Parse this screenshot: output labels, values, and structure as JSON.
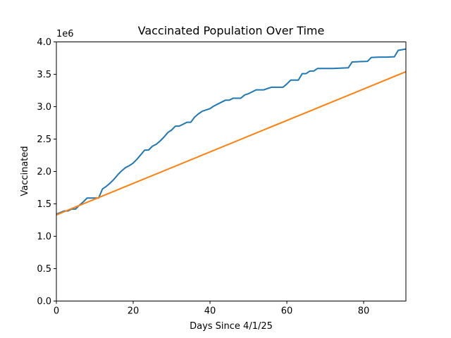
{
  "chart_data": {
    "type": "line",
    "title": "Vaccinated Population Over Time",
    "xlabel": "Days Since 4/1/25",
    "ylabel": "Vaccinated",
    "y_multiplier_label": "1e6",
    "xlim": [
      0,
      91
    ],
    "ylim": [
      0,
      4000000
    ],
    "x_ticks": [
      0,
      20,
      40,
      60,
      80
    ],
    "x_tick_labels": [
      "0",
      "20",
      "40",
      "60",
      "80"
    ],
    "y_ticks": [
      0,
      500000,
      1000000,
      1500000,
      2000000,
      2500000,
      3000000,
      3500000,
      4000000
    ],
    "y_tick_labels": [
      "0.0",
      "0.5",
      "1.0",
      "1.5",
      "2.0",
      "2.5",
      "3.0",
      "3.5",
      "4.0"
    ],
    "grid": false,
    "legend": "none",
    "series": [
      {
        "color": "#1f77b4",
        "x": [
          0,
          2,
          3,
          4,
          5,
          6,
          7,
          8,
          9,
          10,
          11,
          12,
          13,
          14,
          15,
          16,
          17,
          18,
          19,
          20,
          21,
          22,
          23,
          24,
          25,
          26,
          27,
          28,
          29,
          30,
          31,
          32,
          33,
          34,
          35,
          36,
          37,
          38,
          39,
          40,
          41,
          42,
          43,
          44,
          45,
          46,
          47,
          48,
          49,
          50,
          51,
          52,
          53,
          54,
          55,
          56,
          57,
          58,
          59,
          60,
          61,
          62,
          63,
          64,
          65,
          66,
          67,
          68,
          70,
          72,
          74,
          76,
          77,
          79,
          81,
          82,
          84,
          86,
          88,
          89,
          91
        ],
        "values": [
          1340000,
          1390000,
          1390000,
          1420000,
          1420000,
          1480000,
          1530000,
          1590000,
          1590000,
          1590000,
          1590000,
          1730000,
          1770000,
          1820000,
          1880000,
          1950000,
          2010000,
          2060000,
          2090000,
          2130000,
          2190000,
          2260000,
          2330000,
          2330000,
          2390000,
          2420000,
          2470000,
          2530000,
          2600000,
          2640000,
          2700000,
          2700000,
          2730000,
          2760000,
          2760000,
          2840000,
          2890000,
          2930000,
          2950000,
          2970000,
          3010000,
          3040000,
          3070000,
          3100000,
          3100000,
          3130000,
          3130000,
          3130000,
          3180000,
          3200000,
          3230000,
          3260000,
          3260000,
          3260000,
          3280000,
          3300000,
          3300000,
          3300000,
          3300000,
          3350000,
          3410000,
          3410000,
          3410000,
          3510000,
          3510000,
          3550000,
          3550000,
          3590000,
          3590000,
          3590000,
          3595000,
          3600000,
          3690000,
          3695000,
          3700000,
          3760000,
          3765000,
          3765000,
          3770000,
          3870000,
          3890000
        ]
      },
      {
        "color": "#ff7f0e",
        "x": [
          0,
          91
        ],
        "values": [
          1330000,
          3540000
        ]
      }
    ]
  }
}
